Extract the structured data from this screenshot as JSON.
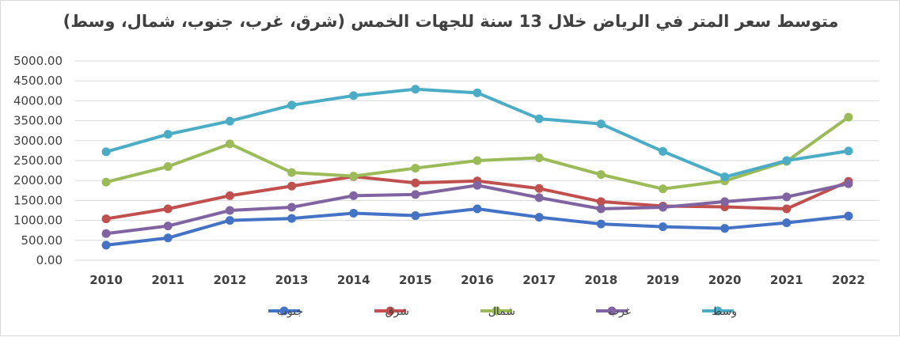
{
  "chart_data": {
    "type": "line",
    "title": "متوسط سعر المتر في الرياض خلال 13 سنة للجهات الخمس (شرق، غرب، جنوب، شمال، وسط)",
    "xlabel": "",
    "ylabel": "",
    "categories": [
      "2010",
      "2011",
      "2012",
      "2013",
      "2014",
      "2015",
      "2016",
      "2017",
      "2018",
      "2019",
      "2020",
      "2021",
      "2022"
    ],
    "ylim": [
      0,
      5000
    ],
    "yticks": [
      "0.00",
      "500.00",
      "1000.00",
      "1500.00",
      "2000.00",
      "2500.00",
      "3000.00",
      "3500.00",
      "4000.00",
      "4500.00",
      "5000.00"
    ],
    "grid": true,
    "legend_position": "bottom",
    "series": [
      {
        "name": "جنوب",
        "color": "#4472c4",
        "values": [
          380,
          560,
          1000,
          1050,
          1180,
          1120,
          1290,
          1080,
          910,
          840,
          800,
          940,
          1110
        ]
      },
      {
        "name": "شرق",
        "color": "#c0504d",
        "values": [
          1040,
          1290,
          1620,
          1860,
          2100,
          1940,
          1990,
          1800,
          1470,
          1360,
          1340,
          1290,
          1980
        ]
      },
      {
        "name": "شمال",
        "color": "#9bbb59",
        "values": [
          1960,
          2350,
          2920,
          2200,
          2110,
          2310,
          2500,
          2570,
          2150,
          1790,
          1990,
          2480,
          3590
        ]
      },
      {
        "name": "غرب",
        "color": "#8064a2",
        "values": [
          670,
          860,
          1250,
          1330,
          1620,
          1650,
          1880,
          1570,
          1290,
          1330,
          1470,
          1590,
          1920
        ]
      },
      {
        "name": "وسط",
        "color": "#4bacc6",
        "values": [
          2720,
          3160,
          3490,
          3890,
          4130,
          4290,
          4200,
          3550,
          3420,
          2730,
          2090,
          2500,
          2740
        ]
      }
    ]
  }
}
